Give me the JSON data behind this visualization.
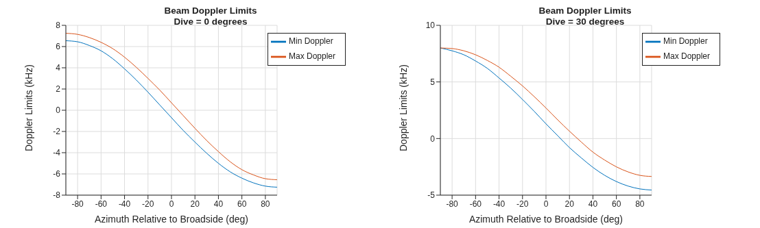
{
  "chart_data": [
    {
      "type": "line",
      "title": "Beam Doppler Limits\nDive = 0 degrees",
      "xlabel": "Azimuth Relative to Broadside (deg)",
      "ylabel": "Doppler Limits (kHz)",
      "x": [
        -90,
        -80,
        -70,
        -60,
        -50,
        -40,
        -30,
        -20,
        -10,
        0,
        10,
        20,
        30,
        40,
        50,
        60,
        70,
        80,
        90
      ],
      "series": [
        {
          "name": "Min Doppler",
          "color": "#0072bd",
          "values": [
            6.55,
            6.45,
            6.1,
            5.6,
            4.85,
            3.9,
            2.85,
            1.7,
            0.5,
            -0.7,
            -1.9,
            -3.0,
            -4.05,
            -5.0,
            -5.8,
            -6.4,
            -6.85,
            -7.15,
            -7.25
          ]
        },
        {
          "name": "Max Doppler",
          "color": "#d95319",
          "values": [
            7.25,
            7.15,
            6.85,
            6.4,
            5.8,
            5.0,
            4.05,
            3.0,
            1.9,
            0.7,
            -0.5,
            -1.7,
            -2.85,
            -3.9,
            -4.85,
            -5.6,
            -6.1,
            -6.45,
            -6.55
          ]
        }
      ],
      "xlim": [
        -90,
        90
      ],
      "xticks": [
        -80,
        -60,
        -40,
        -20,
        0,
        20,
        40,
        60,
        80
      ],
      "ylim": [
        -8,
        8
      ],
      "yticks": [
        -8,
        -6,
        -4,
        -2,
        0,
        2,
        4,
        6,
        8
      ],
      "grid": true,
      "legend": "top right",
      "marker": "none",
      "line_style": "solid"
    },
    {
      "type": "line",
      "title": "Beam Doppler Limits\nDive = 30 degrees",
      "xlabel": "Azimuth Relative to Broadside (deg)",
      "ylabel": "Doppler Limits (kHz)",
      "x": [
        -90,
        -80,
        -70,
        -60,
        -50,
        -40,
        -30,
        -20,
        -10,
        0,
        10,
        20,
        30,
        40,
        50,
        60,
        70,
        80,
        90
      ],
      "series": [
        {
          "name": "Min Doppler",
          "color": "#0072bd",
          "values": [
            8.0,
            7.75,
            7.4,
            6.85,
            6.2,
            5.35,
            4.45,
            3.45,
            2.4,
            1.3,
            0.25,
            -0.8,
            -1.7,
            -2.55,
            -3.25,
            -3.8,
            -4.2,
            -4.45,
            -4.55
          ]
        },
        {
          "name": "Max Doppler",
          "color": "#d95319",
          "values": [
            8.0,
            7.95,
            7.75,
            7.4,
            6.9,
            6.3,
            5.5,
            4.65,
            3.7,
            2.7,
            1.65,
            0.65,
            -0.3,
            -1.2,
            -1.9,
            -2.5,
            -2.95,
            -3.25,
            -3.35
          ]
        }
      ],
      "xlim": [
        -90,
        90
      ],
      "xticks": [
        -80,
        -60,
        -40,
        -20,
        0,
        20,
        40,
        60,
        80
      ],
      "ylim": [
        -5,
        10
      ],
      "yticks": [
        -5,
        0,
        5,
        10
      ],
      "grid": true,
      "legend": "top right",
      "marker": "none",
      "line_style": "solid"
    }
  ]
}
